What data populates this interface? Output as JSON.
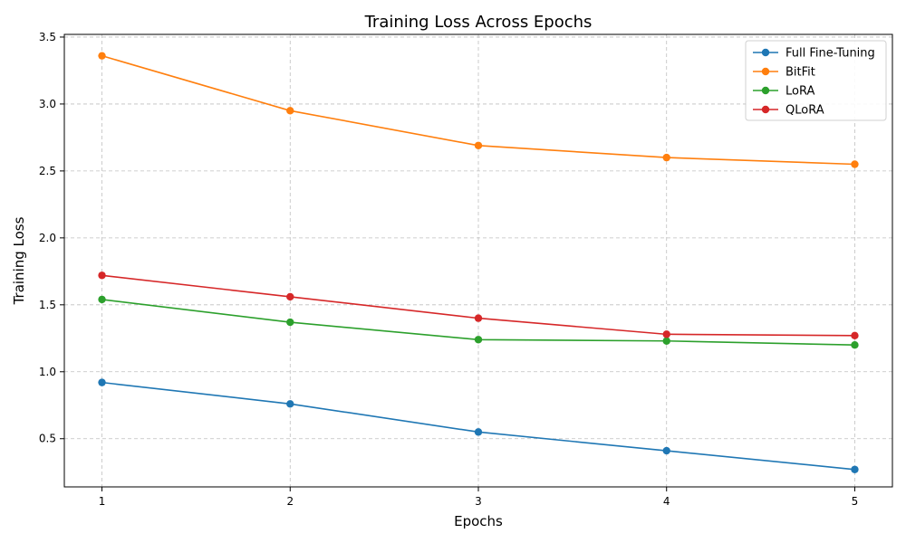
{
  "chart_data": {
    "type": "line",
    "title": "Training Loss Across Epochs",
    "xlabel": "Epochs",
    "ylabel": "Training Loss",
    "x": [
      1,
      2,
      3,
      4,
      5
    ],
    "x_ticks": [
      "1",
      "2",
      "3",
      "4",
      "5"
    ],
    "y_ticks": [
      "0.5",
      "1.0",
      "1.5",
      "2.0",
      "2.5",
      "3.0",
      "3.5"
    ],
    "y_tick_values": [
      0.5,
      1.0,
      1.5,
      2.0,
      2.5,
      3.0,
      3.5
    ],
    "xlim": [
      0.8,
      5.2
    ],
    "ylim": [
      0.14,
      3.52
    ],
    "grid": true,
    "legend_position": "top-right",
    "series": [
      {
        "name": "Full Fine-Tuning",
        "color": "#1f77b4",
        "values": [
          0.92,
          0.76,
          0.55,
          0.41,
          0.27
        ]
      },
      {
        "name": "BitFit",
        "color": "#ff7f0e",
        "values": [
          3.36,
          2.95,
          2.69,
          2.6,
          2.55
        ]
      },
      {
        "name": "LoRA",
        "color": "#2ca02c",
        "values": [
          1.54,
          1.37,
          1.24,
          1.23,
          1.2
        ]
      },
      {
        "name": "QLoRA",
        "color": "#d62728",
        "values": [
          1.72,
          1.56,
          1.4,
          1.28,
          1.27
        ]
      }
    ]
  }
}
